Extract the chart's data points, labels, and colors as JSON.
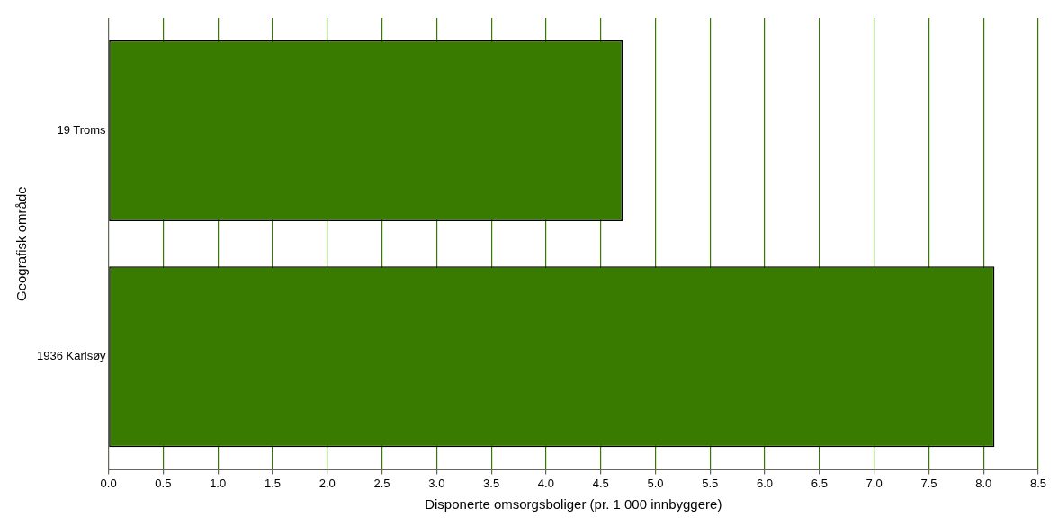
{
  "chart_data": {
    "type": "bar",
    "orientation": "horizontal",
    "xlabel": "Disponerte omsorgsboliger (pr. 1 000 innbyggere)",
    "ylabel": "Geografisk område",
    "categories": [
      "19 Troms",
      "1936 Karlsøy"
    ],
    "values": [
      4.7,
      8.1
    ],
    "color": "#397b00",
    "xlim": [
      0,
      8.5
    ],
    "xticks": [
      {
        "value": 0,
        "label": "0.0"
      },
      {
        "value": 0.5,
        "label": "0.5"
      },
      {
        "value": 1,
        "label": "1.0"
      },
      {
        "value": 1.5,
        "label": "1.5"
      },
      {
        "value": 2,
        "label": "2.0"
      },
      {
        "value": 2.5,
        "label": "2.5"
      },
      {
        "value": 3,
        "label": "3.0"
      },
      {
        "value": 3.5,
        "label": "3.5"
      },
      {
        "value": 4,
        "label": "4.0"
      },
      {
        "value": 4.5,
        "label": "4.5"
      },
      {
        "value": 5,
        "label": "5.0"
      },
      {
        "value": 5.5,
        "label": "5.5"
      },
      {
        "value": 6,
        "label": "6.0"
      },
      {
        "value": 6.5,
        "label": "6.5"
      },
      {
        "value": 7,
        "label": "7.0"
      },
      {
        "value": 7.5,
        "label": "7.5"
      },
      {
        "value": 8,
        "label": "8.0"
      },
      {
        "value": 8.5,
        "label": "8.5"
      }
    ],
    "grid": "x",
    "legend": false
  }
}
